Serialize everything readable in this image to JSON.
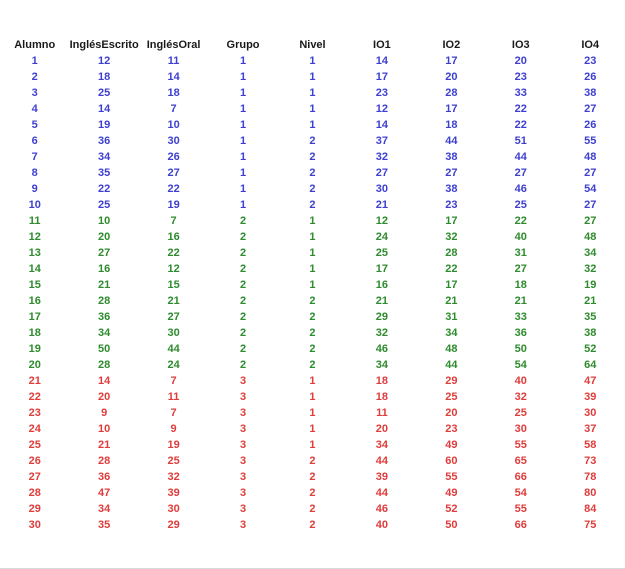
{
  "table": {
    "columns": [
      "Alumno",
      "InglésEscrito",
      "InglésOral",
      "Grupo",
      "Nivel",
      "IO1",
      "IO2",
      "IO3",
      "IO4"
    ],
    "rows": [
      [
        1,
        12,
        11,
        1,
        1,
        14,
        17,
        20,
        23
      ],
      [
        2,
        18,
        14,
        1,
        1,
        17,
        20,
        23,
        26
      ],
      [
        3,
        25,
        18,
        1,
        1,
        23,
        28,
        33,
        38
      ],
      [
        4,
        14,
        7,
        1,
        1,
        12,
        17,
        22,
        27
      ],
      [
        5,
        19,
        10,
        1,
        1,
        14,
        18,
        22,
        26
      ],
      [
        6,
        36,
        30,
        1,
        2,
        37,
        44,
        51,
        55
      ],
      [
        7,
        34,
        26,
        1,
        2,
        32,
        38,
        44,
        48
      ],
      [
        8,
        35,
        27,
        1,
        2,
        27,
        27,
        27,
        27
      ],
      [
        9,
        22,
        22,
        1,
        2,
        30,
        38,
        46,
        54
      ],
      [
        10,
        25,
        19,
        1,
        2,
        21,
        23,
        25,
        27
      ],
      [
        11,
        10,
        7,
        2,
        1,
        12,
        17,
        22,
        27
      ],
      [
        12,
        20,
        16,
        2,
        1,
        24,
        32,
        40,
        48
      ],
      [
        13,
        27,
        22,
        2,
        1,
        25,
        28,
        31,
        34
      ],
      [
        14,
        16,
        12,
        2,
        1,
        17,
        22,
        27,
        32
      ],
      [
        15,
        21,
        15,
        2,
        1,
        16,
        17,
        18,
        19
      ],
      [
        16,
        28,
        21,
        2,
        2,
        21,
        21,
        21,
        21
      ],
      [
        17,
        36,
        27,
        2,
        2,
        29,
        31,
        33,
        35
      ],
      [
        18,
        34,
        30,
        2,
        2,
        32,
        34,
        36,
        38
      ],
      [
        19,
        50,
        44,
        2,
        2,
        46,
        48,
        50,
        52
      ],
      [
        20,
        28,
        24,
        2,
        2,
        34,
        44,
        54,
        64
      ],
      [
        21,
        14,
        7,
        3,
        1,
        18,
        29,
        40,
        47
      ],
      [
        22,
        20,
        11,
        3,
        1,
        18,
        25,
        32,
        39
      ],
      [
        23,
        9,
        7,
        3,
        1,
        11,
        20,
        25,
        30
      ],
      [
        24,
        10,
        9,
        3,
        1,
        20,
        23,
        30,
        37
      ],
      [
        25,
        21,
        19,
        3,
        1,
        34,
        49,
        55,
        58
      ],
      [
        26,
        28,
        25,
        3,
        2,
        44,
        60,
        65,
        73
      ],
      [
        27,
        36,
        32,
        3,
        2,
        39,
        55,
        66,
        78
      ],
      [
        28,
        47,
        39,
        3,
        2,
        44,
        49,
        54,
        80
      ],
      [
        29,
        34,
        30,
        3,
        2,
        46,
        52,
        55,
        84
      ],
      [
        30,
        35,
        29,
        3,
        2,
        40,
        50,
        66,
        75
      ]
    ],
    "group_colors": {
      "1": "#3d3fd0",
      "2": "#2e8b2e",
      "3": "#e03c3c"
    },
    "header_color": "#1a1a1a"
  }
}
